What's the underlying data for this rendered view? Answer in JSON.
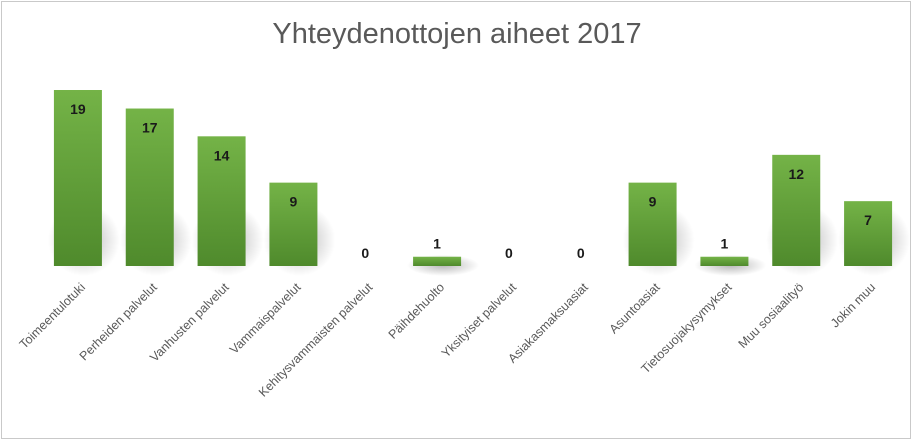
{
  "chart_data": {
    "type": "bar",
    "title": "Yhteydenottojen aiheet 2017",
    "categories": [
      "Toimeentulotuki",
      "Perheiden palvelut",
      "Vanhusten palvelut",
      "Vammaispalvelut",
      "Kehitysvammaisten palvelut",
      "Päihdehuolto",
      "Yksityiset palvelut",
      "Asiakasmaksuasiat",
      "Asuntoasiat",
      "Tietosuojakysymykset",
      "Muu sosiaalityö",
      "Jokin muu"
    ],
    "values": [
      19,
      17,
      14,
      9,
      0,
      1,
      0,
      0,
      9,
      1,
      12,
      7
    ],
    "ylim": [
      0,
      19
    ],
    "grid": false,
    "legend": "none",
    "data_labels": true,
    "bar_color": "#6aa83e",
    "bar_color_dark": "#4f8a2c"
  }
}
